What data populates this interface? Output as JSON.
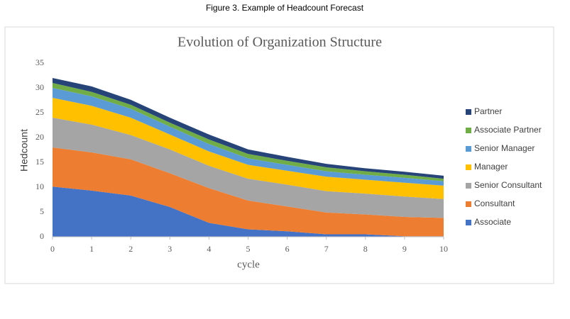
{
  "caption": "Figure 3. Example of Headcount Forecast",
  "chart_data": {
    "type": "stacked_area",
    "title": "Evolution of Organization Structure",
    "x_label": "cycle",
    "y_label": "Hedcount",
    "x": [
      0,
      1,
      2,
      3,
      4,
      5,
      6,
      7,
      8,
      9,
      10
    ],
    "xlim": [
      0,
      10
    ],
    "xticks": [
      0,
      1,
      2,
      3,
      4,
      5,
      6,
      7,
      8,
      9,
      10
    ],
    "ylim": [
      0,
      35
    ],
    "yticks": [
      0,
      5,
      10,
      15,
      20,
      25,
      30,
      35
    ],
    "grid": false,
    "legend": "right",
    "series": [
      {
        "name": "Associate",
        "color": "#4472c4",
        "values": [
          10.1,
          9.3,
          8.3,
          6,
          2.8,
          1.5,
          1.1,
          0.5,
          0.5,
          0.1,
          0.1
        ]
      },
      {
        "name": "Consultant",
        "color": "#ed7d31",
        "values": [
          7.9,
          7.7,
          7.3,
          6.8,
          7,
          5.8,
          5,
          4.4,
          4,
          3.9,
          3.7
        ]
      },
      {
        "name": "Senior Consultant",
        "color": "#a5a5a5",
        "values": [
          6,
          5.6,
          4.9,
          4.8,
          4.5,
          4.4,
          4.4,
          4.3,
          4.2,
          4.1,
          3.8
        ]
      },
      {
        "name": "Manager",
        "color": "#ffc000",
        "values": [
          4,
          3.8,
          3.5,
          3,
          2.9,
          2.8,
          2.8,
          2.9,
          2.8,
          2.8,
          2.7
        ]
      },
      {
        "name": "Senior Manager",
        "color": "#5b9bd5",
        "values": [
          2,
          1.9,
          1.8,
          1.6,
          1.5,
          1.3,
          1.2,
          1.1,
          1,
          1,
          0.9
        ]
      },
      {
        "name": "Associate Partner",
        "color": "#70ad47",
        "values": [
          1,
          0.9,
          0.8,
          0.8,
          0.9,
          0.9,
          0.8,
          0.8,
          0.7,
          0.6,
          0.5
        ]
      },
      {
        "name": "Partner",
        "color": "#264478",
        "values": [
          1,
          1.1,
          1,
          1,
          1,
          0.9,
          0.8,
          0.7,
          0.6,
          0.6,
          0.6
        ]
      }
    ]
  }
}
